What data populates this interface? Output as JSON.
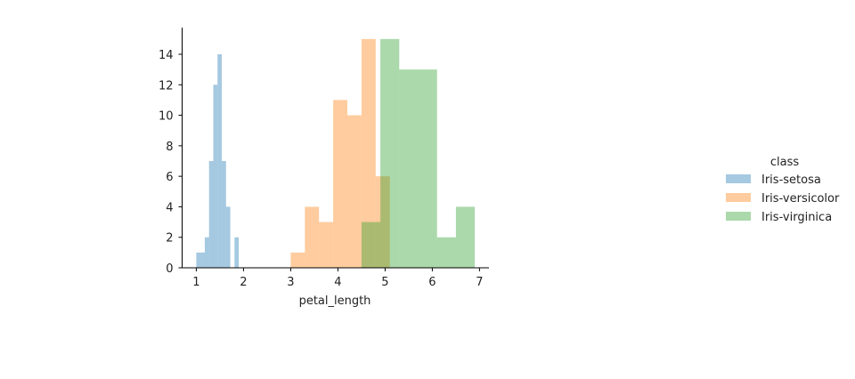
{
  "chart_data": {
    "type": "histogram",
    "xlabel": "petal_length",
    "ylabel": "",
    "xlim": [
      0.7,
      7.2
    ],
    "ylim": [
      0,
      15.75
    ],
    "xticks": [
      1,
      2,
      3,
      4,
      5,
      6,
      7
    ],
    "yticks": [
      0,
      2,
      4,
      6,
      8,
      10,
      12,
      14
    ],
    "legend": {
      "title": "class",
      "placement": "right"
    },
    "series": [
      {
        "name": "Iris-setosa",
        "color": "#1f77b4",
        "bins": [
          {
            "x0": 1.0,
            "x1": 1.09,
            "count": 1
          },
          {
            "x0": 1.09,
            "x1": 1.18,
            "count": 1
          },
          {
            "x0": 1.18,
            "x1": 1.27,
            "count": 2
          },
          {
            "x0": 1.27,
            "x1": 1.36,
            "count": 7
          },
          {
            "x0": 1.36,
            "x1": 1.45,
            "count": 12
          },
          {
            "x0": 1.45,
            "x1": 1.54,
            "count": 14
          },
          {
            "x0": 1.54,
            "x1": 1.63,
            "count": 7
          },
          {
            "x0": 1.63,
            "x1": 1.72,
            "count": 4
          },
          {
            "x0": 1.72,
            "x1": 1.81,
            "count": 0
          },
          {
            "x0": 1.81,
            "x1": 1.9,
            "count": 2
          }
        ]
      },
      {
        "name": "Iris-versicolor",
        "color": "#ff7f0e",
        "bins": [
          {
            "x0": 3.0,
            "x1": 3.3,
            "count": 1
          },
          {
            "x0": 3.3,
            "x1": 3.6,
            "count": 4
          },
          {
            "x0": 3.6,
            "x1": 3.9,
            "count": 3
          },
          {
            "x0": 3.9,
            "x1": 4.2,
            "count": 11
          },
          {
            "x0": 4.2,
            "x1": 4.5,
            "count": 10
          },
          {
            "x0": 4.5,
            "x1": 4.8,
            "count": 15
          },
          {
            "x0": 4.8,
            "x1": 5.1,
            "count": 6
          }
        ]
      },
      {
        "name": "Iris-virginica",
        "color": "#2ca02c",
        "bins": [
          {
            "x0": 4.5,
            "x1": 4.9,
            "count": 3
          },
          {
            "x0": 4.9,
            "x1": 5.3,
            "count": 15
          },
          {
            "x0": 5.3,
            "x1": 5.7,
            "count": 13
          },
          {
            "x0": 5.7,
            "x1": 6.1,
            "count": 13
          },
          {
            "x0": 6.1,
            "x1": 6.5,
            "count": 2
          },
          {
            "x0": 6.5,
            "x1": 6.9,
            "count": 4
          }
        ]
      }
    ]
  }
}
